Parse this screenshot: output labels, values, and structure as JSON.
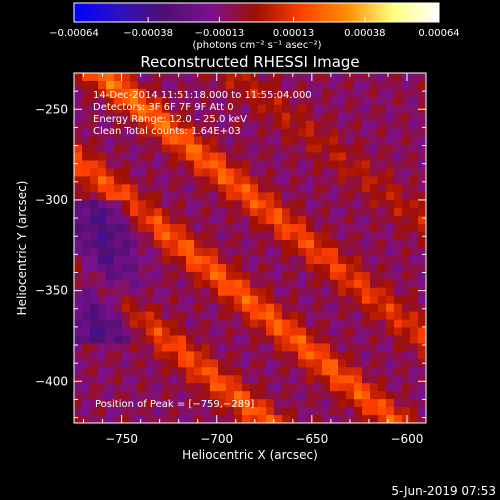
{
  "chart_data": {
    "type": "heatmap",
    "title": "Reconstructed RHESSI Image",
    "xlabel": "Heliocentric X (arcsec)",
    "ylabel": "Heliocentric Y (arcsec)",
    "xlim": [
      -775,
      -590
    ],
    "ylim": [
      -423,
      -230
    ],
    "x_ticks": [
      -750,
      -700,
      -650,
      -600
    ],
    "x_tick_labels": [
      "−750",
      "−700",
      "−650",
      "−600"
    ],
    "y_ticks": [
      -250,
      -300,
      -350,
      -400
    ],
    "y_tick_labels": [
      "−250",
      "−300",
      "−350",
      "−400"
    ],
    "colorbar": {
      "range": [
        -0.00064,
        0.00064
      ],
      "ticks": [
        -0.00064,
        -0.00038,
        -0.00013,
        0.00013,
        0.00038,
        0.00064
      ],
      "tick_labels": [
        "−0.00064",
        "−0.00038",
        "−0.00013",
        "0.00013",
        "0.00038",
        "0.00064"
      ],
      "units_label": "(photons cm⁻² s⁻¹ asec⁻²)",
      "colormap": [
        "#0000ff",
        "#3010c0",
        "#501070",
        "#7a1090",
        "#a01000",
        "#ff4000",
        "#ff9000",
        "#ffff80",
        "#ffffff"
      ]
    },
    "info_lines": [
      "14-Dec-2014 11:51:18.000 to 11:55:04.000",
      "Detectors: 3F 6F 7F 9F Att 0",
      "Energy Range: 12.0 – 25.0 keV",
      "Clean    Total counts: 1.64E+03"
    ],
    "peak_label": "Position of Peak = [−759,−289]",
    "bands": [
      {
        "offset": -80,
        "amp": 0.62
      },
      {
        "offset": -20,
        "amp": 0.48
      },
      {
        "offset": 40,
        "amp": 0.58
      },
      {
        "offset": 100,
        "amp": 0.45
      }
    ],
    "band_slope": -0.85,
    "band_width_arcsec": 11,
    "background_level": -0.0001
  },
  "footer": {
    "date": "5-Jun-2019 07:53"
  }
}
